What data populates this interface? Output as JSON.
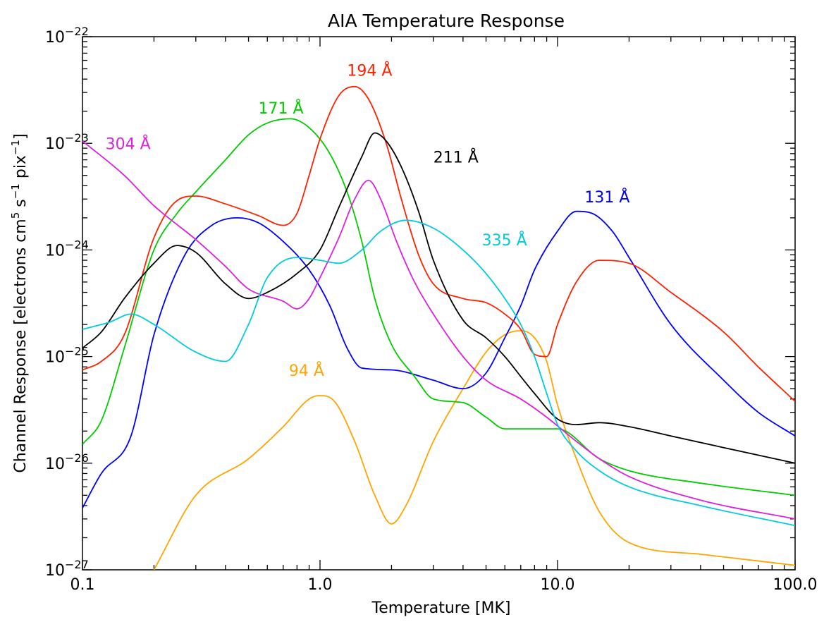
{
  "chart_data": {
    "type": "line",
    "title": "AIA Temperature Response",
    "xlabel": "Temperature [MK]",
    "ylabel": {
      "prefix": "Channel Response [electrons cm",
      "sup1": "5",
      "mid": " s",
      "sup2": "−1",
      "mid2": " pix",
      "sup3": "−1",
      "suffix": "]"
    },
    "x_scale": "log",
    "y_scale": "log",
    "xlim": [
      0.1,
      100.0
    ],
    "ylim": [
      1e-27,
      1e-22
    ],
    "x_ticks": [
      {
        "value": 0.1,
        "label": "0.1"
      },
      {
        "value": 1.0,
        "label": "1.0"
      },
      {
        "value": 10.0,
        "label": "10.0"
      },
      {
        "value": 100.0,
        "label": "100.0"
      }
    ],
    "y_ticks": [
      {
        "value": 1e-27,
        "base": "10",
        "exp": "−27"
      },
      {
        "value": 1e-26,
        "base": "10",
        "exp": "−26"
      },
      {
        "value": 1e-25,
        "base": "10",
        "exp": "−25"
      },
      {
        "value": 1e-24,
        "base": "10",
        "exp": "−24"
      },
      {
        "value": 1e-23,
        "base": "10",
        "exp": "−23"
      },
      {
        "value": 1e-22,
        "base": "10",
        "exp": "−22"
      }
    ],
    "series": [
      {
        "name": "94 Å",
        "color": "#ffa500",
        "label_at": [
          0.74,
          6.6e-26
        ],
        "points": [
          [
            0.2,
            1e-27
          ],
          [
            0.3,
            5e-27
          ],
          [
            0.5,
            1.1e-26
          ],
          [
            0.7,
            2.2e-26
          ],
          [
            0.9,
            4e-26
          ],
          [
            1.0,
            4.3e-26
          ],
          [
            1.15,
            3.8e-26
          ],
          [
            1.4,
            1.6e-26
          ],
          [
            1.7,
            5e-27
          ],
          [
            2.0,
            2.7e-27
          ],
          [
            2.3,
            4e-27
          ],
          [
            3.0,
            1.6e-26
          ],
          [
            4.0,
            5e-26
          ],
          [
            5.0,
            1.1e-25
          ],
          [
            6.0,
            1.6e-25
          ],
          [
            7.0,
            1.75e-25
          ],
          [
            8.0,
            1.5e-25
          ],
          [
            9.0,
            9e-26
          ],
          [
            10.0,
            3.5e-26
          ],
          [
            12.0,
            1.1e-26
          ],
          [
            15.0,
            3.5e-27
          ],
          [
            20.0,
            1.8e-27
          ],
          [
            40.0,
            1.4e-27
          ],
          [
            100.0,
            1.1e-27
          ]
        ]
      },
      {
        "name": "131 Å",
        "color": "#0000ff",
        "label_at": [
          13.0,
          2.8e-24
        ],
        "points": [
          [
            0.1,
            3.8e-27
          ],
          [
            0.12,
            8e-27
          ],
          [
            0.16,
            1.8e-26
          ],
          [
            0.2,
            1.6e-25
          ],
          [
            0.27,
            9e-25
          ],
          [
            0.35,
            1.7e-24
          ],
          [
            0.45,
            2e-24
          ],
          [
            0.55,
            1.8e-24
          ],
          [
            0.7,
            1.2e-24
          ],
          [
            0.9,
            6.5e-25
          ],
          [
            1.1,
            3e-25
          ],
          [
            1.3,
            1.2e-25
          ],
          [
            1.5,
            7.8e-26
          ],
          [
            2.0,
            7.5e-26
          ],
          [
            3.0,
            6e-26
          ],
          [
            4.0,
            5e-26
          ],
          [
            5.0,
            7e-26
          ],
          [
            6.0,
            1.5e-25
          ],
          [
            7.0,
            3e-25
          ],
          [
            8.0,
            6.5e-25
          ],
          [
            10.0,
            1.5e-24
          ],
          [
            12.0,
            2.3e-24
          ],
          [
            14.0,
            2.2e-24
          ],
          [
            17.0,
            1.5e-24
          ],
          [
            20.0,
            8.5e-25
          ],
          [
            30.0,
            2e-25
          ],
          [
            50.0,
            6e-26
          ],
          [
            70.0,
            3e-26
          ],
          [
            100.0,
            1.8e-26
          ]
        ]
      },
      {
        "name": "171 Å",
        "color": "#00cc00",
        "label_at": [
          0.55,
          1.9e-23
        ],
        "points": [
          [
            0.1,
            1.5e-26
          ],
          [
            0.12,
            2.5e-26
          ],
          [
            0.15,
            1.2e-25
          ],
          [
            0.2,
            1e-24
          ],
          [
            0.25,
            2.2e-24
          ],
          [
            0.3,
            3.5e-24
          ],
          [
            0.4,
            7e-24
          ],
          [
            0.5,
            1.2e-23
          ],
          [
            0.6,
            1.55e-23
          ],
          [
            0.75,
            1.7e-23
          ],
          [
            0.9,
            1.4e-23
          ],
          [
            1.1,
            8e-24
          ],
          [
            1.3,
            3.5e-24
          ],
          [
            1.5,
            1.2e-24
          ],
          [
            1.7,
            3.5e-25
          ],
          [
            2.0,
            1.3e-25
          ],
          [
            2.5,
            6.5e-26
          ],
          [
            3.0,
            4e-26
          ],
          [
            4.0,
            3.7e-26
          ],
          [
            5.0,
            2.7e-26
          ],
          [
            6.0,
            2.1e-26
          ],
          [
            8.0,
            2.1e-26
          ],
          [
            10.0,
            2.1e-26
          ],
          [
            15.0,
            1.1e-26
          ],
          [
            20.0,
            8.5e-27
          ],
          [
            40.0,
            6.5e-27
          ],
          [
            100.0,
            5e-27
          ]
        ]
      },
      {
        "name": "194 Å",
        "color": "#ff2200",
        "label_at": [
          1.3,
          4.3e-23
        ],
        "points": [
          [
            0.1,
            7.5e-26
          ],
          [
            0.12,
            9e-26
          ],
          [
            0.15,
            1.6e-25
          ],
          [
            0.2,
            1.3e-24
          ],
          [
            0.25,
            2.9e-24
          ],
          [
            0.3,
            3.2e-24
          ],
          [
            0.4,
            2.7e-24
          ],
          [
            0.55,
            2.1e-24
          ],
          [
            0.7,
            1.7e-24
          ],
          [
            0.8,
            2.2e-24
          ],
          [
            0.9,
            5e-24
          ],
          [
            1.0,
            1.1e-23
          ],
          [
            1.2,
            2.8e-23
          ],
          [
            1.4,
            3.4e-23
          ],
          [
            1.6,
            2.6e-23
          ],
          [
            1.9,
            1e-23
          ],
          [
            2.2,
            3e-24
          ],
          [
            2.6,
            9e-25
          ],
          [
            3.0,
            4.8e-25
          ],
          [
            4.0,
            3.5e-25
          ],
          [
            5.0,
            3.2e-25
          ],
          [
            6.0,
            2.5e-25
          ],
          [
            7.0,
            1.8e-25
          ],
          [
            8.0,
            1.05e-25
          ],
          [
            9.0,
            1e-25
          ],
          [
            10.0,
            2e-25
          ],
          [
            12.0,
            5e-25
          ],
          [
            15.0,
            8e-25
          ],
          [
            20.0,
            7.5e-25
          ],
          [
            30.0,
            4e-25
          ],
          [
            50.0,
            1.7e-25
          ],
          [
            70.0,
            8e-26
          ],
          [
            100.0,
            3.8e-26
          ]
        ]
      },
      {
        "name": "211 Å",
        "color": "#000000",
        "label_at": [
          3.0,
          6.6e-24
        ],
        "points": [
          [
            0.1,
            1.2e-25
          ],
          [
            0.12,
            1.7e-25
          ],
          [
            0.15,
            3.5e-25
          ],
          [
            0.2,
            7.5e-25
          ],
          [
            0.25,
            1.1e-24
          ],
          [
            0.3,
            9.5e-25
          ],
          [
            0.4,
            4.8e-25
          ],
          [
            0.5,
            3.5e-25
          ],
          [
            0.6,
            4e-25
          ],
          [
            0.8,
            6e-25
          ],
          [
            1.0,
            1e-24
          ],
          [
            1.2,
            2.5e-24
          ],
          [
            1.5,
            7.5e-24
          ],
          [
            1.7,
            1.25e-23
          ],
          [
            1.9,
            1.05e-23
          ],
          [
            2.2,
            6e-24
          ],
          [
            2.6,
            2.3e-24
          ],
          [
            3.0,
            8e-25
          ],
          [
            4.0,
            2.2e-25
          ],
          [
            5.0,
            1.5e-25
          ],
          [
            6.0,
            1e-25
          ],
          [
            7.0,
            6.5e-26
          ],
          [
            8.0,
            4.5e-26
          ],
          [
            10.0,
            2.6e-26
          ],
          [
            12.0,
            2.3e-26
          ],
          [
            15.0,
            2.4e-26
          ],
          [
            20.0,
            2.2e-26
          ],
          [
            30.0,
            1.8e-26
          ],
          [
            50.0,
            1.4e-26
          ],
          [
            100.0,
            1e-26
          ]
        ]
      },
      {
        "name": "304 Å",
        "color": "#dd22dd",
        "label_at": [
          0.125,
          8.8e-24
        ],
        "points": [
          [
            0.1,
            1.05e-23
          ],
          [
            0.15,
            5e-24
          ],
          [
            0.2,
            2.6e-24
          ],
          [
            0.3,
            1.25e-24
          ],
          [
            0.4,
            7e-25
          ],
          [
            0.5,
            4.3e-25
          ],
          [
            0.7,
            3.3e-25
          ],
          [
            0.8,
            2.8e-25
          ],
          [
            0.9,
            3.5e-25
          ],
          [
            1.0,
            5.5e-25
          ],
          [
            1.2,
            1.3e-24
          ],
          [
            1.4,
            3e-24
          ],
          [
            1.6,
            4.5e-24
          ],
          [
            1.8,
            3e-24
          ],
          [
            2.1,
            1.2e-24
          ],
          [
            2.5,
            5e-25
          ],
          [
            3.0,
            2.5e-25
          ],
          [
            4.0,
            1e-25
          ],
          [
            5.0,
            6e-26
          ],
          [
            7.0,
            4e-26
          ],
          [
            9.0,
            2.7e-26
          ],
          [
            12.0,
            1.6e-26
          ],
          [
            15.0,
            1.1e-26
          ],
          [
            20.0,
            7.5e-27
          ],
          [
            40.0,
            4.5e-27
          ],
          [
            100.0,
            3e-27
          ]
        ]
      },
      {
        "name": "335 Å",
        "color": "#00ccdd",
        "label_at": [
          4.8,
          1.1e-24
        ],
        "points": [
          [
            0.1,
            1.8e-25
          ],
          [
            0.13,
            2.1e-25
          ],
          [
            0.16,
            2.5e-25
          ],
          [
            0.2,
            2e-25
          ],
          [
            0.3,
            1.1e-25
          ],
          [
            0.4,
            9e-26
          ],
          [
            0.5,
            2e-25
          ],
          [
            0.6,
            5.5e-25
          ],
          [
            0.8,
            8.5e-25
          ],
          [
            1.0,
            8e-25
          ],
          [
            1.2,
            7.5e-25
          ],
          [
            1.5,
            1e-24
          ],
          [
            1.8,
            1.5e-24
          ],
          [
            2.3,
            1.9e-24
          ],
          [
            3.0,
            1.6e-24
          ],
          [
            4.0,
            1e-24
          ],
          [
            5.0,
            6e-25
          ],
          [
            6.0,
            3.5e-25
          ],
          [
            7.0,
            2e-25
          ],
          [
            8.0,
            1e-25
          ],
          [
            9.0,
            4.5e-26
          ],
          [
            10.0,
            2.3e-26
          ],
          [
            12.0,
            1.3e-26
          ],
          [
            15.0,
            8.5e-27
          ],
          [
            20.0,
            6e-27
          ],
          [
            40.0,
            4e-27
          ],
          [
            100.0,
            2.6e-27
          ]
        ]
      }
    ]
  }
}
